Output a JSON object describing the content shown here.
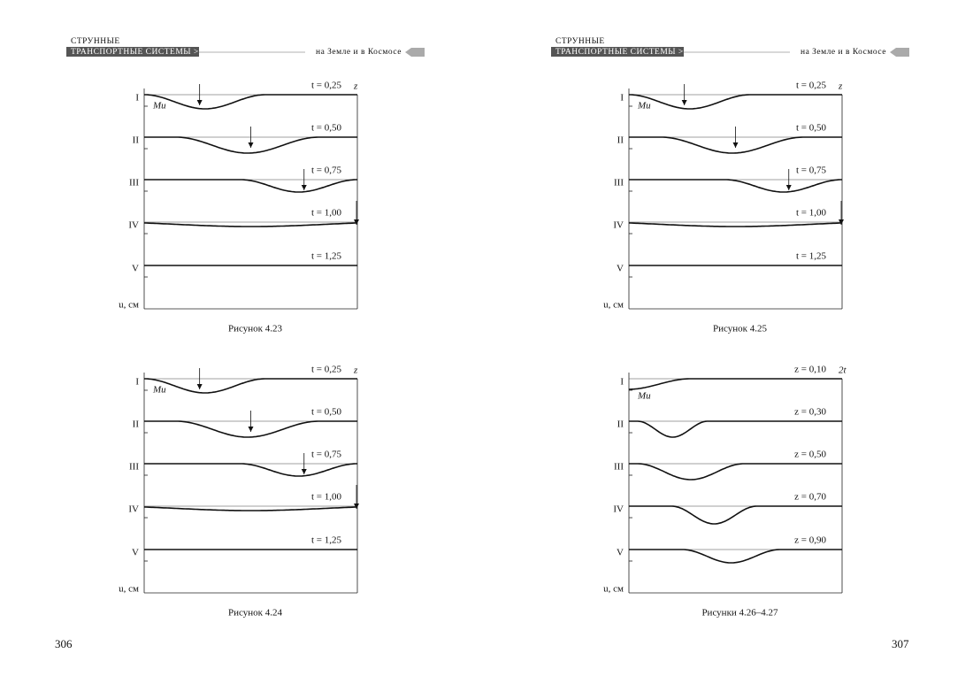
{
  "header": [
    {
      "title_line1": "СТРУННЫЕ",
      "title_line2": "ТРАНСПОРТНЫЕ СИСТЕМЫ >>",
      "subtitle": "на Земле и в Космосе"
    },
    {
      "title_line1": "СТРУННЫЕ",
      "title_line2": "ТРАНСПОРТНЫЕ СИСТЕМЫ >>",
      "subtitle": "на Земле и в Космосе"
    }
  ],
  "figures": [
    {
      "caption": "Рисунок 4.23",
      "axis_x": "z",
      "axis_y": "u, см",
      "load_label": "Mu",
      "rows": [
        {
          "label": "I",
          "param": "t = 0,25"
        },
        {
          "label": "II",
          "param": "t = 0,50"
        },
        {
          "label": "III",
          "param": "t = 0,75"
        },
        {
          "label": "IV",
          "param": "t = 1,00"
        },
        {
          "label": "V",
          "param": "t = 1,25"
        }
      ]
    },
    {
      "caption": "Рисунок 4.24",
      "axis_x": "z",
      "axis_y": "u, см",
      "load_label": "Mu",
      "rows": [
        {
          "label": "I",
          "param": "t = 0,25"
        },
        {
          "label": "II",
          "param": "t = 0,50"
        },
        {
          "label": "III",
          "param": "t = 0,75"
        },
        {
          "label": "IV",
          "param": "t = 1,00"
        },
        {
          "label": "V",
          "param": "t = 1,25"
        }
      ]
    },
    {
      "caption": "Рисунок 4.25",
      "axis_x": "z",
      "axis_y": "u, см",
      "load_label": "Mu",
      "rows": [
        {
          "label": "I",
          "param": "t = 0,25"
        },
        {
          "label": "II",
          "param": "t = 0,50"
        },
        {
          "label": "III",
          "param": "t = 0,75"
        },
        {
          "label": "IV",
          "param": "t = 1,00"
        },
        {
          "label": "V",
          "param": "t = 1,25"
        }
      ]
    },
    {
      "caption": "Рисунки 4.26–4.27",
      "axis_x": "2t",
      "axis_y": "u, см",
      "load_label": "Mu",
      "rows": [
        {
          "label": "I",
          "param": "z = 0,10"
        },
        {
          "label": "II",
          "param": "z = 0,30"
        },
        {
          "label": "III",
          "param": "z = 0,50"
        },
        {
          "label": "IV",
          "param": "z = 0,70"
        },
        {
          "label": "V",
          "param": "z = 0,90"
        }
      ]
    }
  ],
  "page_numbers": [
    "306",
    "307"
  ]
}
